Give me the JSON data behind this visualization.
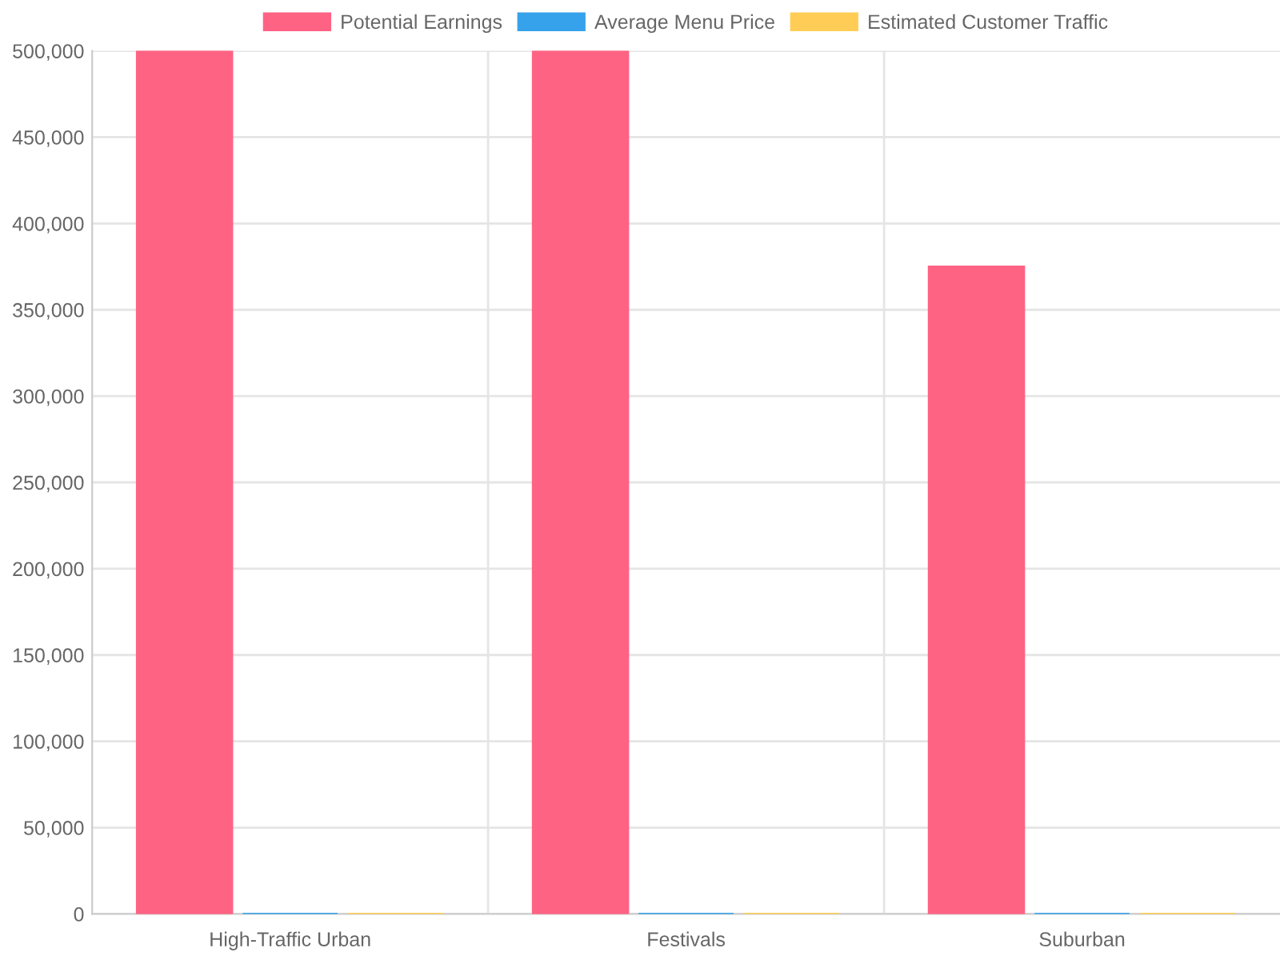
{
  "chart_data": {
    "type": "bar",
    "categories": [
      "High-Traffic Urban",
      "Festivals",
      "Suburban"
    ],
    "series": [
      {
        "name": "Potential Earnings",
        "color": "#ff6384",
        "values": [
          500000,
          500000,
          375000
        ]
      },
      {
        "name": "Average Menu Price",
        "color": "#36a2eb",
        "values": [
          0,
          0,
          0
        ]
      },
      {
        "name": "Estimated Customer Traffic",
        "color": "#ffcd56",
        "values": [
          0,
          0,
          0
        ]
      }
    ],
    "ylim": [
      0,
      500000
    ],
    "yticks": [
      {
        "value": 0,
        "label": "0"
      },
      {
        "value": 50000,
        "label": "50,000"
      },
      {
        "value": 100000,
        "label": "100,000"
      },
      {
        "value": 150000,
        "label": "150,000"
      },
      {
        "value": 200000,
        "label": "200,000"
      },
      {
        "value": 250000,
        "label": "250,000"
      },
      {
        "value": 300000,
        "label": "300,000"
      },
      {
        "value": 350000,
        "label": "350,000"
      },
      {
        "value": 400000,
        "label": "400,000"
      },
      {
        "value": 450000,
        "label": "450,000"
      },
      {
        "value": 500000,
        "label": "500,000"
      }
    ],
    "grid": true,
    "legend": "top"
  }
}
